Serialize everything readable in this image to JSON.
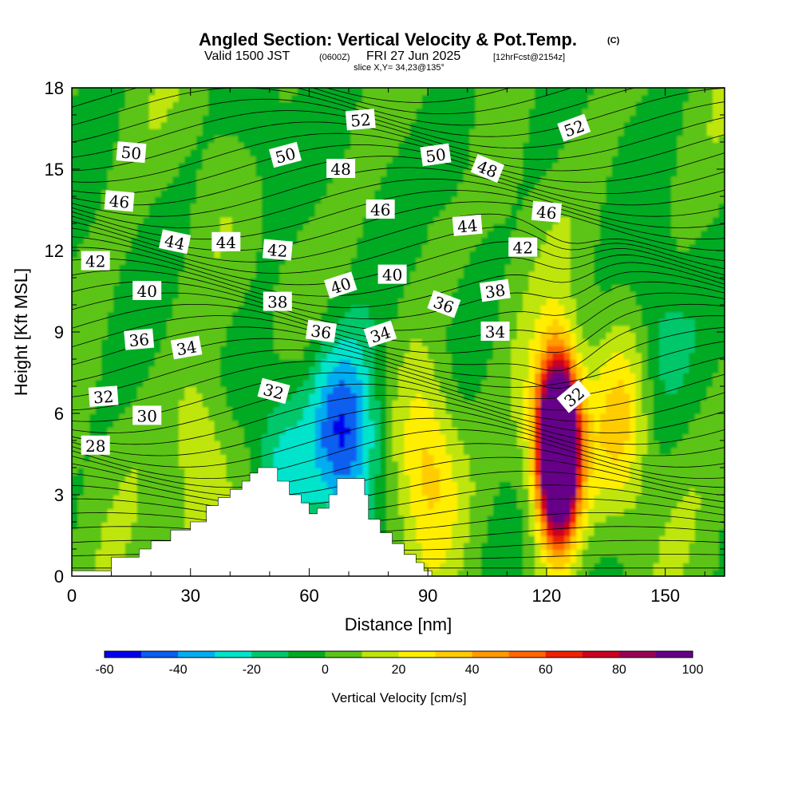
{
  "header": {
    "title": "Angled Section: Vertical Velocity & Pot.Temp.",
    "title_mark": "(C)",
    "valid_prefix": "Valid 1500 JST",
    "valid_zulu": "(0600Z)",
    "valid_date": "FRI 27 Jun 2025",
    "forecast": "[12hrFcst@2154z]",
    "slice": "slice X,Y= 34,23@135°"
  },
  "colorbar": {
    "label": "Vertical Velocity [cm/s]",
    "levels": [
      -60,
      -50,
      -40,
      -30,
      -20,
      -10,
      0,
      10,
      20,
      30,
      40,
      50,
      60,
      70,
      80,
      90,
      100
    ],
    "tick_labels": [
      "-60",
      "-40",
      "-20",
      "0",
      "20",
      "40",
      "60",
      "80",
      "100"
    ],
    "colors": [
      "#0000ee",
      "#0a5ef0",
      "#00aef0",
      "#00e4cc",
      "#00c86a",
      "#00aa22",
      "#5cc418",
      "#bee60a",
      "#ffee00",
      "#ffcc00",
      "#ff9a00",
      "#ff6600",
      "#ee2200",
      "#cc0022",
      "#990055",
      "#660088"
    ]
  },
  "chart_data": {
    "type": "heatmap",
    "title": "Angled Section: Vertical Velocity & Pot.Temp.",
    "xlabel": "Distance [nm]",
    "ylabel": "Height [Kft MSL]",
    "xlim": [
      0,
      165
    ],
    "ylim": [
      0,
      18
    ],
    "x_ticks": [
      0,
      30,
      60,
      90,
      120,
      150
    ],
    "y_ticks": [
      0,
      3,
      6,
      9,
      12,
      15,
      18
    ],
    "fill_variable": "Vertical Velocity [cm/s]",
    "contour_variable": "Potential Temperature",
    "terrain_profile": [
      [
        0,
        0.2
      ],
      [
        10,
        0.7
      ],
      [
        17,
        1.0
      ],
      [
        20,
        1.3
      ],
      [
        25,
        1.7
      ],
      [
        30,
        2.0
      ],
      [
        34,
        2.6
      ],
      [
        37,
        2.9
      ],
      [
        40,
        3.2
      ],
      [
        43,
        3.5
      ],
      [
        45,
        3.8
      ],
      [
        47,
        4.0
      ],
      [
        50,
        4.0
      ],
      [
        52,
        3.5
      ],
      [
        55,
        3.0
      ],
      [
        58,
        2.7
      ],
      [
        60,
        2.3
      ],
      [
        62,
        2.5
      ],
      [
        65,
        3.0
      ],
      [
        67,
        3.6
      ],
      [
        72,
        3.6
      ],
      [
        74,
        3.0
      ],
      [
        75,
        2.1
      ],
      [
        78,
        1.6
      ],
      [
        81,
        1.2
      ],
      [
        84,
        0.8
      ],
      [
        87,
        0.5
      ],
      [
        89,
        0.2
      ],
      [
        91,
        0.0
      ]
    ],
    "vertical_velocity_features": [
      {
        "x": 123,
        "y": 4.5,
        "peak": 100
      },
      {
        "x": 123,
        "y": 5.0,
        "peak": 70
      },
      {
        "x": 122,
        "y": 5.0,
        "peak": 40
      },
      {
        "x": 90,
        "y": 4.2,
        "peak": 35
      },
      {
        "x": 139,
        "y": 5.5,
        "peak": 25
      },
      {
        "x": 33,
        "y": 4.0,
        "peak": 25
      },
      {
        "x": 53,
        "y": 4.5,
        "peak": -25
      },
      {
        "x": 71,
        "y": 4.8,
        "peak": -45
      },
      {
        "x": 65,
        "y": 6.0,
        "peak": -20
      },
      {
        "x": 148,
        "y": 9.0,
        "peak": -15
      },
      {
        "x": 47,
        "y": 16.5,
        "peak": -12
      },
      {
        "x": 98,
        "y": 16.0,
        "peak": -12
      }
    ],
    "contour_labels": [
      {
        "text": "28",
        "x": 6,
        "y": 4.8,
        "angle": 0
      },
      {
        "text": "30",
        "x": 19,
        "y": 5.9,
        "angle": 0
      },
      {
        "text": "32",
        "x": 8,
        "y": 6.6,
        "angle": -4
      },
      {
        "text": "32",
        "x": 51,
        "y": 6.8,
        "angle": 15
      },
      {
        "text": "32",
        "x": 127,
        "y": 6.6,
        "angle": -40
      },
      {
        "text": "34",
        "x": 29,
        "y": 8.4,
        "angle": -10
      },
      {
        "text": "34",
        "x": 78,
        "y": 8.9,
        "angle": -18
      },
      {
        "text": "34",
        "x": 107,
        "y": 9.0,
        "angle": 0
      },
      {
        "text": "36",
        "x": 17,
        "y": 8.7,
        "angle": -5
      },
      {
        "text": "36",
        "x": 63,
        "y": 9.0,
        "angle": 8
      },
      {
        "text": "36",
        "x": 94,
        "y": 10.0,
        "angle": 20
      },
      {
        "text": "38",
        "x": 52,
        "y": 10.1,
        "angle": 0
      },
      {
        "text": "38",
        "x": 107,
        "y": 10.5,
        "angle": -8
      },
      {
        "text": "40",
        "x": 19,
        "y": 10.5,
        "angle": 0
      },
      {
        "text": "40",
        "x": 68,
        "y": 10.7,
        "angle": -18
      },
      {
        "text": "40",
        "x": 81,
        "y": 11.1,
        "angle": 0
      },
      {
        "text": "42",
        "x": 6,
        "y": 11.6,
        "angle": 0
      },
      {
        "text": "42",
        "x": 52,
        "y": 12.0,
        "angle": 5
      },
      {
        "text": "42",
        "x": 114,
        "y": 12.1,
        "angle": 0
      },
      {
        "text": "44",
        "x": 26,
        "y": 12.3,
        "angle": 12
      },
      {
        "text": "44",
        "x": 39,
        "y": 12.3,
        "angle": 0
      },
      {
        "text": "44",
        "x": 100,
        "y": 12.9,
        "angle": -5
      },
      {
        "text": "46",
        "x": 12,
        "y": 13.8,
        "angle": 5
      },
      {
        "text": "46",
        "x": 78,
        "y": 13.5,
        "angle": 0
      },
      {
        "text": "46",
        "x": 120,
        "y": 13.4,
        "angle": 5
      },
      {
        "text": "48",
        "x": 68,
        "y": 15.0,
        "angle": 0
      },
      {
        "text": "48",
        "x": 105,
        "y": 15.0,
        "angle": 22
      },
      {
        "text": "50",
        "x": 15,
        "y": 15.6,
        "angle": 5
      },
      {
        "text": "50",
        "x": 54,
        "y": 15.5,
        "angle": -15
      },
      {
        "text": "50",
        "x": 92,
        "y": 15.5,
        "angle": -8
      },
      {
        "text": "52",
        "x": 73,
        "y": 16.8,
        "angle": -5
      },
      {
        "text": "52",
        "x": 127,
        "y": 16.5,
        "angle": -20
      }
    ]
  }
}
